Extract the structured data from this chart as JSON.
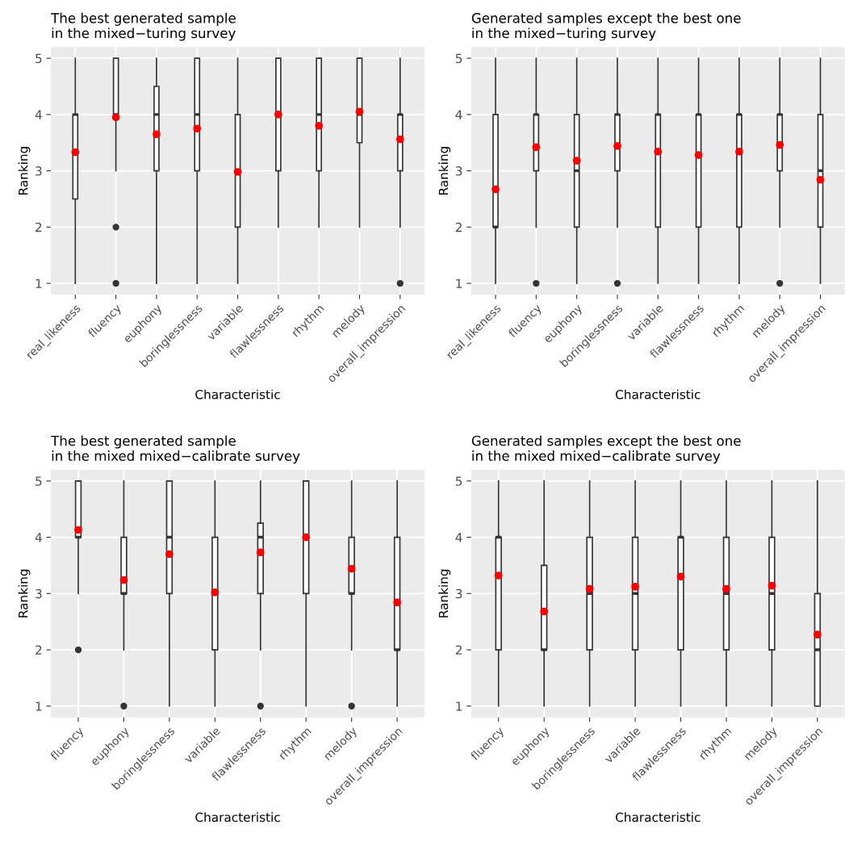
{
  "chart_data": [
    {
      "type": "box",
      "title": "The best generated sample\nin the mixed−turing survey",
      "xlabel": "Characteristic",
      "ylabel": "Ranking",
      "categories": [
        "real_likeness",
        "fluency",
        "euphony",
        "boringlessness",
        "variable",
        "flawlessness",
        "rhythm",
        "melody",
        "overall_impression"
      ],
      "ylim": [
        0.8,
        5.2
      ],
      "yticks": [
        1,
        2,
        3,
        4,
        5
      ],
      "grid": true,
      "series": [
        {
          "color": "#333333",
          "boxes": [
            {
              "low": 1,
              "q1": 2.5,
              "median": 4,
              "q3": 4,
              "high": 5,
              "mean": 3.33
            },
            {
              "low": 3,
              "q1": 4,
              "median": 4,
              "q3": 5,
              "high": 5,
              "outliers": [
                2,
                1
              ],
              "mean": 3.95
            },
            {
              "low": 1,
              "q1": 3,
              "median": 4,
              "q3": 4.5,
              "high": 5,
              "mean": 3.65
            },
            {
              "low": 1,
              "q1": 3,
              "median": 4,
              "q3": 5,
              "high": 5,
              "mean": 3.75
            },
            {
              "low": 1,
              "q1": 2,
              "median": 3,
              "q3": 4,
              "high": 5,
              "mean": 2.98
            },
            {
              "low": 2,
              "q1": 3,
              "median": 4,
              "q3": 5,
              "high": 5,
              "mean": 4.0
            },
            {
              "low": 2,
              "q1": 3,
              "median": 4,
              "q3": 5,
              "high": 5,
              "mean": 3.8
            },
            {
              "low": 2,
              "q1": 3.5,
              "median": 4,
              "q3": 5,
              "high": 5,
              "mean": 4.05
            },
            {
              "low": 2,
              "q1": 3,
              "median": 4,
              "q3": 4,
              "high": 5,
              "outliers": [
                1
              ],
              "mean": 3.56
            }
          ]
        }
      ]
    },
    {
      "type": "box",
      "title": "Generated samples except the best one\nin the mixed−turing survey",
      "xlabel": "Characteristic",
      "ylabel": "Ranking",
      "categories": [
        "real_likeness",
        "fluency",
        "euphony",
        "boringlessness",
        "variable",
        "flawlessness",
        "rhythm",
        "melody",
        "overall_impression"
      ],
      "ylim": [
        0.8,
        5.2
      ],
      "yticks": [
        1,
        2,
        3,
        4,
        5
      ],
      "grid": true,
      "series": [
        {
          "color": "#333333",
          "boxes": [
            {
              "low": 1,
              "q1": 2,
              "median": 2,
              "q3": 4,
              "high": 5,
              "mean": 2.67
            },
            {
              "low": 2,
              "q1": 3,
              "median": 4,
              "q3": 4,
              "high": 5,
              "outliers": [
                1
              ],
              "mean": 3.42
            },
            {
              "low": 1,
              "q1": 2,
              "median": 3,
              "q3": 4,
              "high": 5,
              "mean": 3.18
            },
            {
              "low": 2,
              "q1": 3,
              "median": 4,
              "q3": 4,
              "high": 5,
              "outliers": [
                1
              ],
              "mean": 3.44
            },
            {
              "low": 1,
              "q1": 2,
              "median": 4,
              "q3": 4,
              "high": 5,
              "mean": 3.34
            },
            {
              "low": 1,
              "q1": 2,
              "median": 4,
              "q3": 4,
              "high": 5,
              "mean": 3.28
            },
            {
              "low": 1,
              "q1": 2,
              "median": 4,
              "q3": 4,
              "high": 5,
              "mean": 3.34
            },
            {
              "low": 2,
              "q1": 3,
              "median": 4,
              "q3": 4,
              "high": 5,
              "outliers": [
                1
              ],
              "mean": 3.46
            },
            {
              "low": 1,
              "q1": 2,
              "median": 3,
              "q3": 4,
              "high": 5,
              "mean": 2.84
            }
          ]
        }
      ]
    },
    {
      "type": "box",
      "title": "The best generated sample\nin the mixed mixed−calibrate survey",
      "xlabel": "Characteristic",
      "ylabel": "Ranking",
      "categories": [
        "fluency",
        "euphony",
        "boringlessness",
        "variable",
        "flawlessness",
        "rhythm",
        "melody",
        "overall_impression"
      ],
      "ylim": [
        0.8,
        5.2
      ],
      "yticks": [
        1,
        2,
        3,
        4,
        5
      ],
      "grid": true,
      "series": [
        {
          "color": "#333333",
          "boxes": [
            {
              "low": 3,
              "q1": 4,
              "median": 4,
              "q3": 5,
              "high": 5,
              "outliers": [
                2
              ],
              "mean": 4.13
            },
            {
              "low": 2,
              "q1": 3,
              "median": 3,
              "q3": 4,
              "high": 5,
              "outliers": [
                1
              ],
              "mean": 3.24
            },
            {
              "low": 1,
              "q1": 3,
              "median": 4,
              "q3": 5,
              "high": 5,
              "mean": 3.7
            },
            {
              "low": 1,
              "q1": 2,
              "median": 3,
              "q3": 4,
              "high": 5,
              "mean": 3.02
            },
            {
              "low": 2,
              "q1": 3,
              "median": 4,
              "q3": 4.25,
              "high": 5,
              "outliers": [
                1
              ],
              "mean": 3.73
            },
            {
              "low": 1,
              "q1": 3,
              "median": 4,
              "q3": 5,
              "high": 5,
              "mean": 4.0
            },
            {
              "low": 2,
              "q1": 3,
              "median": 3,
              "q3": 4,
              "high": 5,
              "outliers": [
                1
              ],
              "mean": 3.44
            },
            {
              "low": 1,
              "q1": 2,
              "median": 2,
              "q3": 4,
              "high": 5,
              "mean": 2.84
            }
          ]
        }
      ]
    },
    {
      "type": "box",
      "title": "Generated samples except the best one\nin the mixed mixed−calibrate survey",
      "xlabel": "Characteristic",
      "ylabel": "Ranking",
      "categories": [
        "fluency",
        "euphony",
        "boringlessness",
        "variable",
        "flawlessness",
        "rhythm",
        "melody",
        "overall_impression"
      ],
      "ylim": [
        0.8,
        5.2
      ],
      "yticks": [
        1,
        2,
        3,
        4,
        5
      ],
      "grid": true,
      "series": [
        {
          "color": "#333333",
          "boxes": [
            {
              "low": 1,
              "q1": 2,
              "median": 4,
              "q3": 4,
              "high": 5,
              "mean": 3.32
            },
            {
              "low": 1,
              "q1": 2,
              "median": 2,
              "q3": 3.5,
              "high": 5,
              "mean": 2.68
            },
            {
              "low": 1,
              "q1": 2,
              "median": 3,
              "q3": 4,
              "high": 5,
              "mean": 3.08
            },
            {
              "low": 1,
              "q1": 2,
              "median": 3,
              "q3": 4,
              "high": 5,
              "mean": 3.12
            },
            {
              "low": 1,
              "q1": 2,
              "median": 4,
              "q3": 4,
              "high": 5,
              "mean": 3.3
            },
            {
              "low": 1,
              "q1": 2,
              "median": 3,
              "q3": 4,
              "high": 5,
              "mean": 3.08
            },
            {
              "low": 1,
              "q1": 2,
              "median": 3,
              "q3": 4,
              "high": 5,
              "mean": 3.14
            },
            {
              "low": 1,
              "q1": 1,
              "median": 2,
              "q3": 3,
              "high": 5,
              "mean": 2.27
            }
          ]
        }
      ]
    }
  ]
}
